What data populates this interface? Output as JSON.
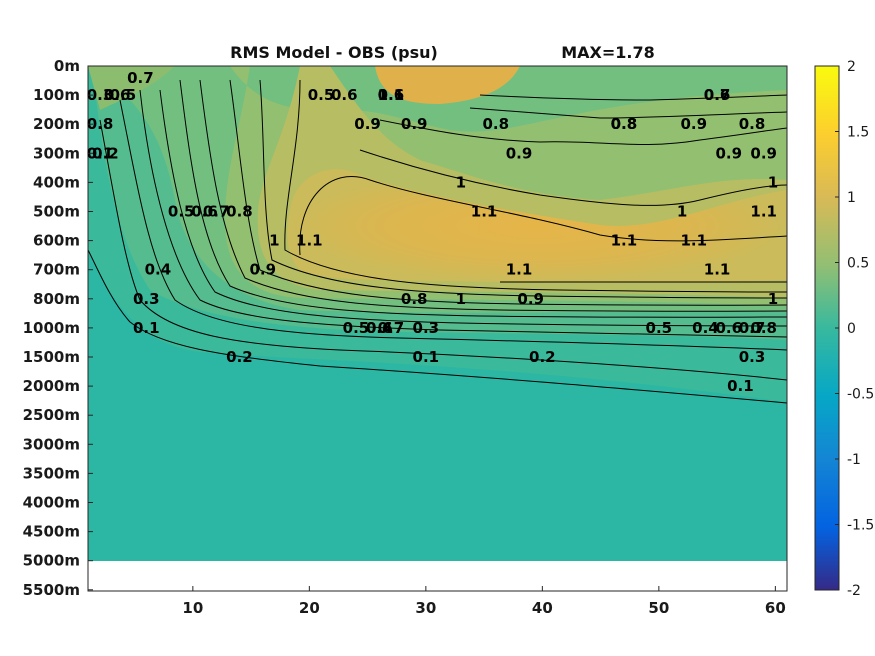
{
  "chart_data": {
    "type": "heatmap",
    "title": "RMS Model - OBS (psu)",
    "max_label": "MAX=1.78",
    "xlabel": "",
    "ylabel": "",
    "x_ticks": [
      "10",
      "20",
      "30",
      "40",
      "50",
      "60"
    ],
    "x_tick_values": [
      10,
      20,
      30,
      40,
      50,
      60
    ],
    "xlim": [
      1,
      61
    ],
    "y_ticks": [
      "0m",
      "100m",
      "200m",
      "300m",
      "400m",
      "500m",
      "600m",
      "700m",
      "800m",
      "1000m",
      "1500m",
      "2000m",
      "2500m",
      "3000m",
      "3500m",
      "4000m",
      "4500m",
      "5000m",
      "5500m"
    ],
    "colorbar": {
      "colormap": "parula",
      "range": [
        -2,
        2
      ],
      "ticks": [
        "2",
        "1.5",
        "1",
        "0.5",
        "0",
        "-0.5",
        "-1",
        "-1.5",
        "-2"
      ],
      "tick_values": [
        2,
        1.5,
        1,
        0.5,
        0,
        -0.5,
        -1,
        -1.5,
        -2
      ]
    },
    "max_value": 1.78,
    "data_extent_depth": "5000m",
    "contour_levels": [
      0.1,
      0.2,
      0.3,
      0.4,
      0.5,
      0.6,
      0.7,
      0.8,
      0.9,
      1,
      1.1
    ],
    "contour_labels": [
      {
        "text": "0.6",
        "x": 3.5,
        "y": "100m"
      },
      {
        "text": "0.7",
        "x": 5.5,
        "y": "0m"
      },
      {
        "text": "0.5",
        "x": 4,
        "y": "100m"
      },
      {
        "text": "0.3",
        "x": 2,
        "y": "100m"
      },
      {
        "text": "0.8",
        "x": 1.5,
        "y": "200m"
      },
      {
        "text": "0.2",
        "x": 2.5,
        "y": "300m"
      },
      {
        "text": "0.1",
        "x": 1,
        "y": "300m"
      },
      {
        "text": "0.5",
        "x": 21,
        "y": "100m"
      },
      {
        "text": "0.6",
        "x": 23,
        "y": "100m"
      },
      {
        "text": "1.1",
        "x": 27,
        "y": "100m"
      },
      {
        "text": "0.9",
        "x": 25,
        "y": "200m"
      },
      {
        "text": "0.9",
        "x": 29,
        "y": "200m"
      },
      {
        "text": "0.8",
        "x": 36,
        "y": "200m"
      },
      {
        "text": "0.9",
        "x": 38,
        "y": "300m"
      },
      {
        "text": "0.8",
        "x": 47,
        "y": "200m"
      },
      {
        "text": "0.9",
        "x": 53,
        "y": "200m"
      },
      {
        "text": "0.9",
        "x": 56,
        "y": "300m"
      },
      {
        "text": "0.6",
        "x": 55,
        "y": "100m"
      },
      {
        "text": "0.7",
        "x": 55,
        "y": "100m"
      },
      {
        "text": "0.8",
        "x": 58,
        "y": "200m"
      },
      {
        "text": "0.9",
        "x": 59,
        "y": "300m"
      },
      {
        "text": "1",
        "x": 33,
        "y": "400m"
      },
      {
        "text": "1.1",
        "x": 35,
        "y": "500m"
      },
      {
        "text": "1",
        "x": 60,
        "y": "400m"
      },
      {
        "text": "1",
        "x": 52,
        "y": "500m"
      },
      {
        "text": "1.1",
        "x": 59,
        "y": "500m"
      },
      {
        "text": "1.1",
        "x": 47,
        "y": "600m"
      },
      {
        "text": "1.1",
        "x": 53,
        "y": "600m"
      },
      {
        "text": "0.5",
        "x": 9,
        "y": "500m"
      },
      {
        "text": "0.6",
        "x": 11,
        "y": "500m"
      },
      {
        "text": "0.7",
        "x": 12,
        "y": "500m"
      },
      {
        "text": "0.8",
        "x": 14,
        "y": "500m"
      },
      {
        "text": "1",
        "x": 17,
        "y": "600m"
      },
      {
        "text": "1.1",
        "x": 20,
        "y": "600m"
      },
      {
        "text": "0.9",
        "x": 16,
        "y": "700m"
      },
      {
        "text": "0.4",
        "x": 7,
        "y": "700m"
      },
      {
        "text": "0.3",
        "x": 6,
        "y": "800m"
      },
      {
        "text": "0.1",
        "x": 6,
        "y": "1000m"
      },
      {
        "text": "0.2",
        "x": 14,
        "y": "1500m"
      },
      {
        "text": "1.1",
        "x": 38,
        "y": "700m"
      },
      {
        "text": "1",
        "x": 33,
        "y": "800m"
      },
      {
        "text": "0.9",
        "x": 39,
        "y": "800m"
      },
      {
        "text": "1.1",
        "x": 55,
        "y": "700m"
      },
      {
        "text": "1",
        "x": 60,
        "y": "800m"
      },
      {
        "text": "0.8",
        "x": 29,
        "y": "800m"
      },
      {
        "text": "0.7",
        "x": 27,
        "y": "1000m"
      },
      {
        "text": "0.6",
        "x": 26,
        "y": "1000m"
      },
      {
        "text": "0.5",
        "x": 24,
        "y": "1000m"
      },
      {
        "text": "0.4",
        "x": 26,
        "y": "1000m"
      },
      {
        "text": "0.3",
        "x": 30,
        "y": "1000m"
      },
      {
        "text": "0.5",
        "x": 50,
        "y": "1000m"
      },
      {
        "text": "0.6",
        "x": 56,
        "y": "1000m"
      },
      {
        "text": "0.7",
        "x": 58,
        "y": "1000m"
      },
      {
        "text": "0.8",
        "x": 59,
        "y": "1000m"
      },
      {
        "text": "0.4",
        "x": 54,
        "y": "1000m"
      },
      {
        "text": "0.3",
        "x": 58,
        "y": "1500m"
      },
      {
        "text": "0.2",
        "x": 40,
        "y": "1500m"
      },
      {
        "text": "0.1",
        "x": 30,
        "y": "1500m"
      },
      {
        "text": "0.1",
        "x": 57,
        "y": "2000m"
      },
      {
        "text": "0.6",
        "x": 27,
        "y": "100m"
      },
      {
        "text": "0.8",
        "x": 47,
        "y": "200m"
      }
    ]
  }
}
